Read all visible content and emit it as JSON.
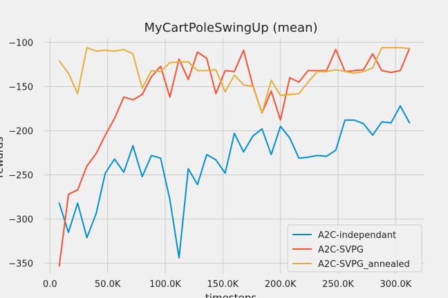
{
  "chart_data": {
    "type": "line",
    "title": "MyCartPoleSwingUp (mean)",
    "xlabel": "timesteps",
    "ylabel": "rewards",
    "xlim": [
      -5000,
      325000
    ],
    "ylim": [
      -362,
      -95
    ],
    "xticks": [
      0,
      50000,
      100000,
      150000,
      200000,
      250000,
      300000
    ],
    "xtick_labels": [
      "0.0",
      "50.0K",
      "100.0K",
      "150.0K",
      "200.0K",
      "250.0K",
      "300.0K"
    ],
    "yticks": [
      -350,
      -300,
      -250,
      -200,
      -150,
      -100
    ],
    "ytick_labels": [
      "−350",
      "−300",
      "−250",
      "−200",
      "−150",
      "−100"
    ],
    "grid": true,
    "legend_position": "lower-right",
    "x": [
      8000,
      16000,
      24000,
      32000,
      40000,
      48000,
      56000,
      64000,
      72000,
      80000,
      88000,
      96000,
      104000,
      112000,
      120000,
      128000,
      136000,
      144000,
      152000,
      160000,
      168000,
      176000,
      184000,
      192000,
      200000,
      208000,
      216000,
      224000,
      232000,
      240000,
      248000,
      256000,
      264000,
      272000,
      280000,
      288000,
      296000,
      304000,
      312000
    ],
    "series": [
      {
        "name": "A2C-independant",
        "color": "#008fd5",
        "values": [
          -282,
          -315,
          -282,
          -321,
          -294,
          -248,
          -232,
          -247,
          -217,
          -252,
          -228,
          -231,
          -278,
          -344,
          -243,
          -261,
          -227,
          -233,
          -248,
          -203,
          -224,
          -206,
          -198,
          -227,
          -195,
          -208,
          -231,
          -230,
          -228,
          -229,
          -222,
          -188,
          -188,
          -192,
          -205,
          -190,
          -191,
          -172,
          -191
        ]
      },
      {
        "name": "A2C-SVPG",
        "color": "#fc4f30",
        "values": [
          -353,
          -272,
          -267,
          -240,
          -226,
          -205,
          -186,
          -162,
          -165,
          -159,
          -139,
          -127,
          -162,
          -119,
          -142,
          -111,
          -118,
          -158,
          -132,
          -133,
          -109,
          -149,
          -180,
          -155,
          -188,
          -140,
          -145,
          -132,
          -132,
          -132,
          -108,
          -133,
          -132,
          -131,
          -113,
          -132,
          -134,
          -132,
          -107
        ]
      },
      {
        "name": "A2C-SVPG_annealed",
        "color": "#e5ae38",
        "values": [
          -121,
          -135,
          -158,
          -106,
          -110,
          -109,
          -110,
          -108,
          -113,
          -152,
          -132,
          -133,
          -123,
          -122,
          -122,
          -132,
          -132,
          -131,
          -156,
          -137,
          -148,
          -150,
          -180,
          -143,
          -160,
          -159,
          -158,
          -145,
          -133,
          -133,
          -131,
          -133,
          -135,
          -133,
          -129,
          -106,
          -106,
          -106,
          -107
        ]
      }
    ]
  }
}
